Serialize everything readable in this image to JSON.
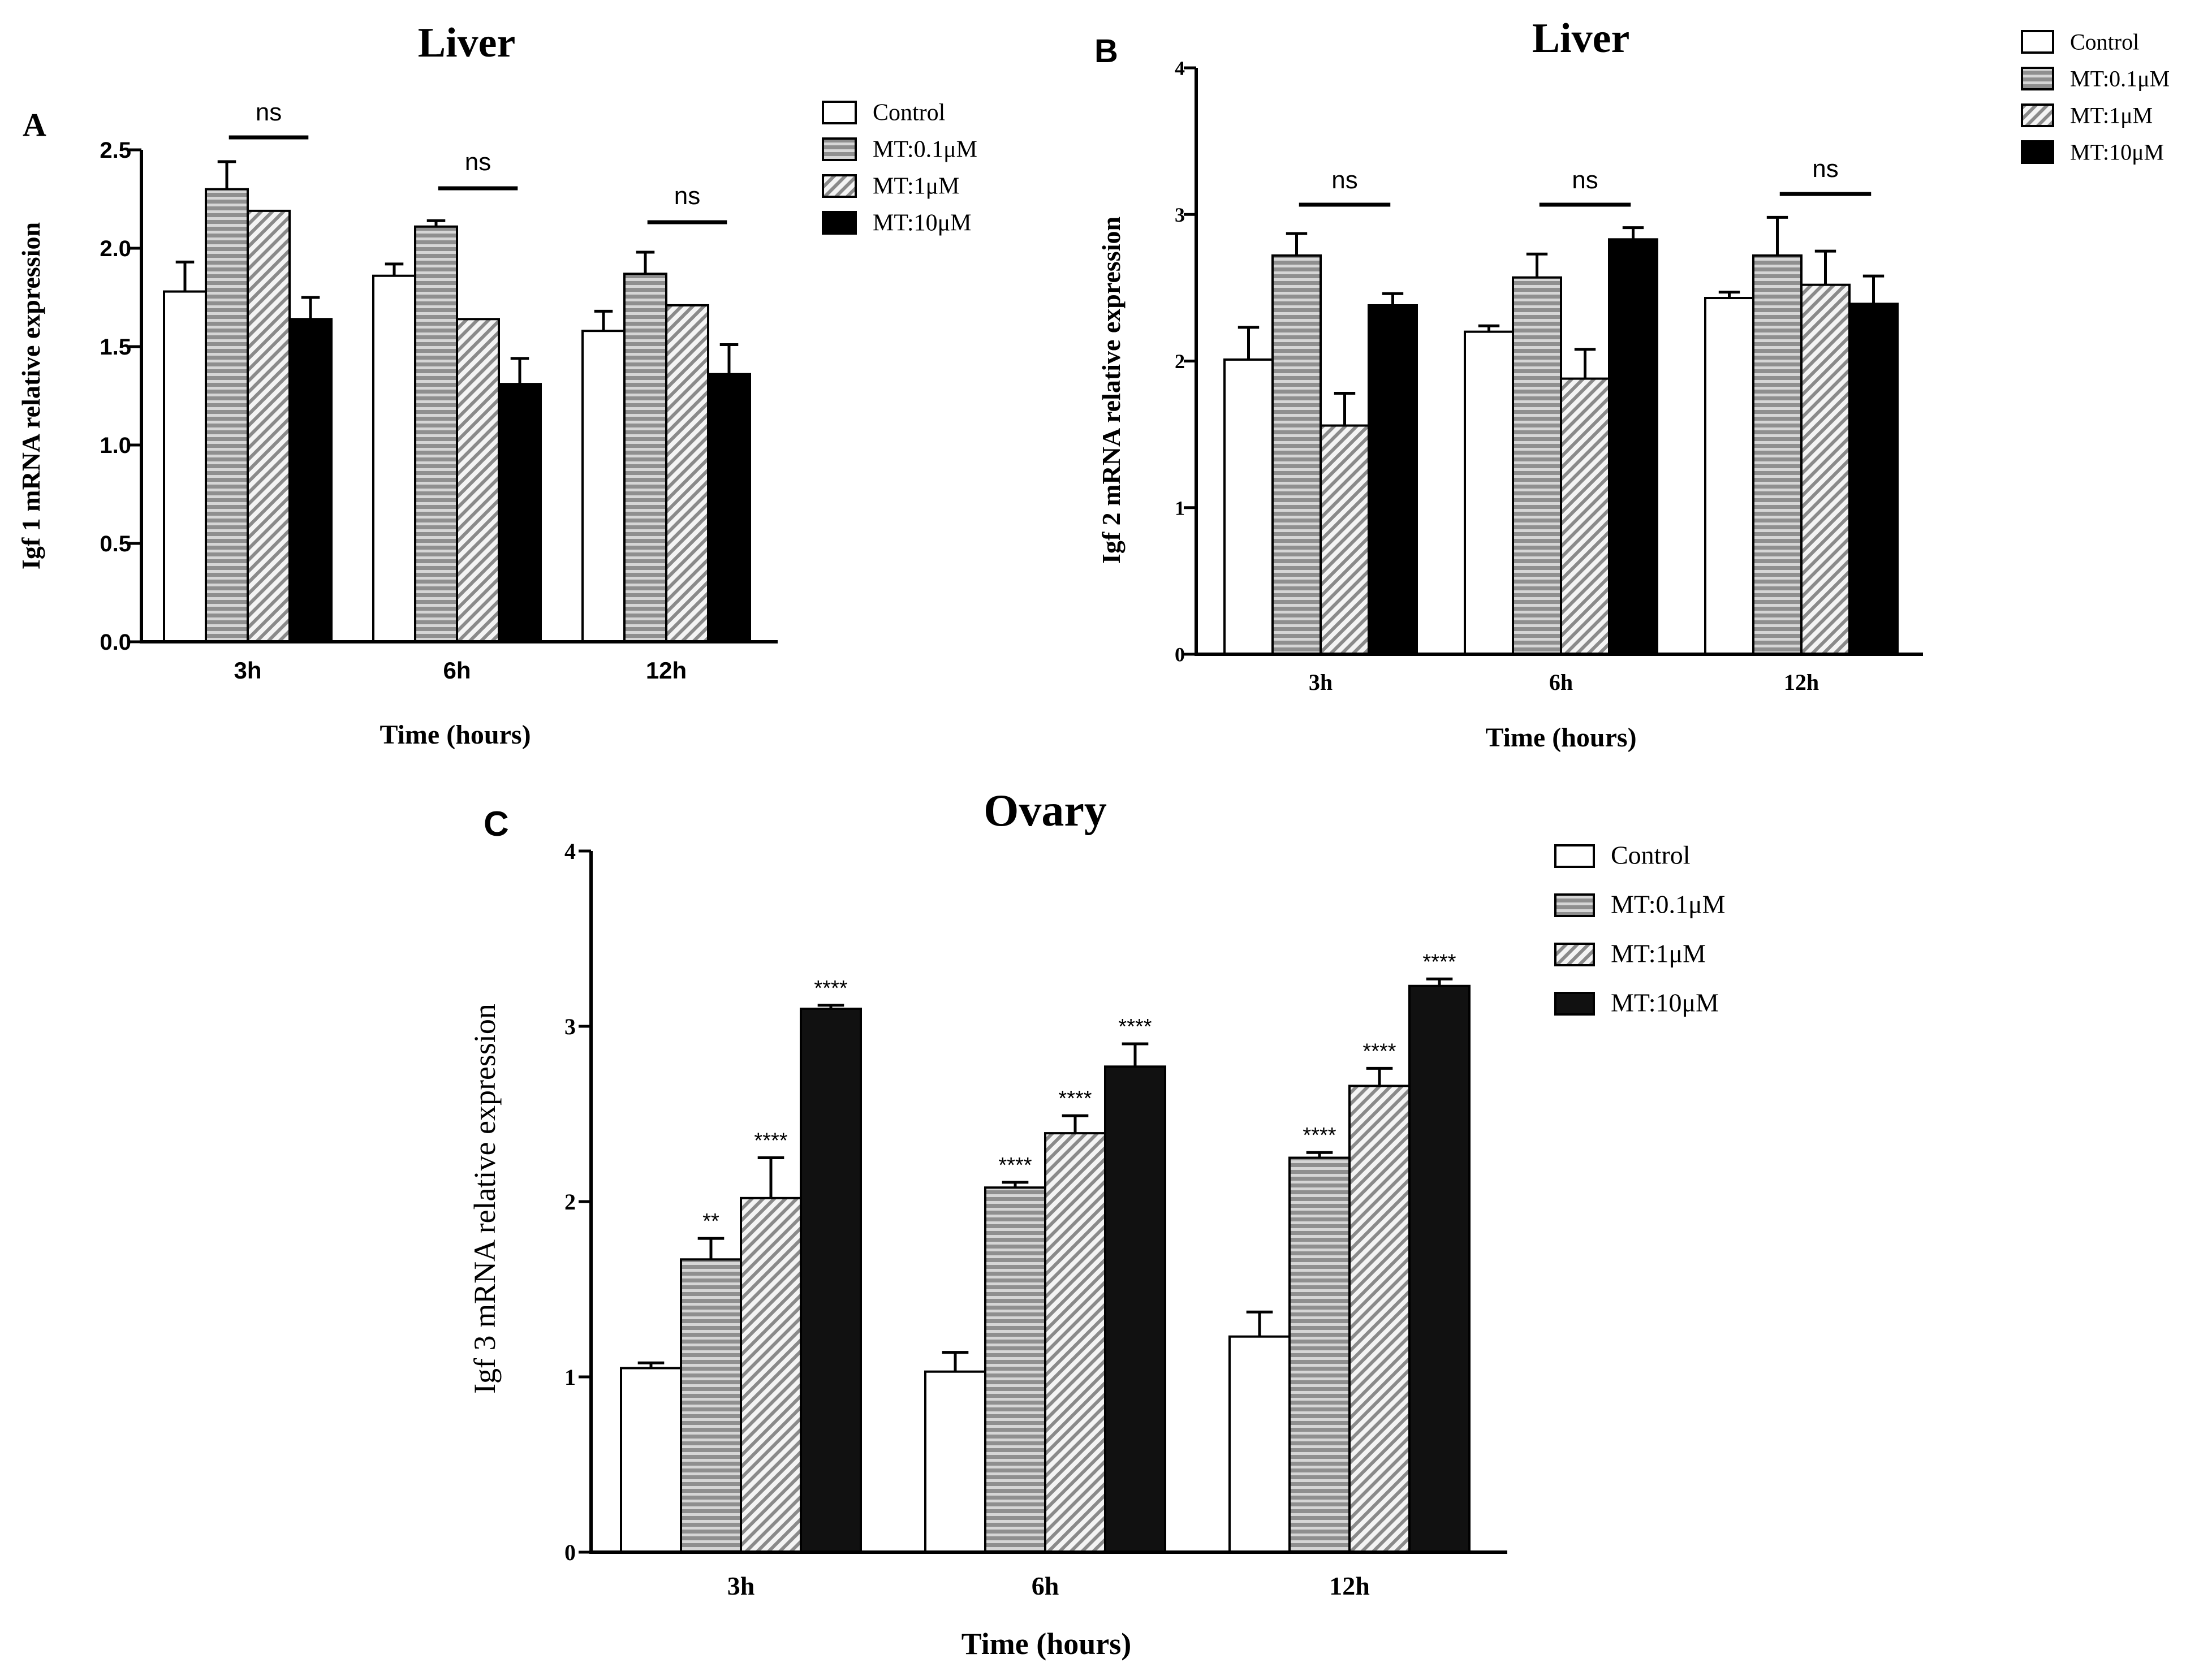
{
  "colors": {
    "control": "#ffffff",
    "mt01": "#9a9a9a",
    "mt1": "#cfcfcf",
    "mt10": "#000000",
    "axis": "#000000"
  },
  "chart_data": [
    {
      "id": "A",
      "panel_label": "A",
      "type": "bar",
      "title": "Liver",
      "xlabel": "Time (hours)",
      "ylabel": "Igf 1 mRNA relative expression",
      "ylim": [
        0,
        2.5
      ],
      "yticks": [
        "0.0",
        "0.5",
        "1.0",
        "1.5",
        "2.0",
        "2.5"
      ],
      "categories": [
        "3h",
        "6h",
        "12h"
      ],
      "legend_position": "top-right",
      "series": [
        {
          "name": "Control",
          "values": [
            1.78,
            1.86,
            1.58
          ],
          "errors": [
            0.15,
            0.06,
            0.1
          ]
        },
        {
          "name": "MT:0.1μM",
          "values": [
            2.3,
            2.11,
            1.87
          ],
          "errors": [
            0.14,
            0.03,
            0.11
          ]
        },
        {
          "name": "MT:1μM",
          "values": [
            2.19,
            1.64,
            1.71
          ],
          "errors": [
            0.0,
            0.0,
            0.0
          ]
        },
        {
          "name": "MT:10μM",
          "values": [
            1.64,
            1.31,
            1.36
          ],
          "errors": [
            0.11,
            0.13,
            0.15
          ]
        }
      ],
      "annotations": [
        {
          "category": "3h",
          "text": "ns"
        },
        {
          "category": "6h",
          "text": "ns"
        },
        {
          "category": "12h",
          "text": "ns"
        }
      ]
    },
    {
      "id": "B",
      "panel_label": "B",
      "type": "bar",
      "title": "Liver",
      "xlabel": "Time (hours)",
      "ylabel": "Igf 2 mRNA relative expression",
      "ylim": [
        0,
        4
      ],
      "yticks": [
        "0",
        "1",
        "2",
        "3",
        "4"
      ],
      "categories": [
        "3h",
        "6h",
        "12h"
      ],
      "legend_position": "top-right",
      "series": [
        {
          "name": "Control",
          "values": [
            2.01,
            2.2,
            2.43
          ],
          "errors": [
            0.22,
            0.04,
            0.04
          ]
        },
        {
          "name": "MT:0.1μM",
          "values": [
            2.72,
            2.57,
            2.72
          ],
          "errors": [
            0.15,
            0.16,
            0.26
          ]
        },
        {
          "name": "MT:1μM",
          "values": [
            1.56,
            1.88,
            2.52
          ],
          "errors": [
            0.22,
            0.2,
            0.23
          ]
        },
        {
          "name": "MT:10μM",
          "values": [
            2.38,
            2.83,
            2.39
          ],
          "errors": [
            0.08,
            0.08,
            0.19
          ]
        }
      ],
      "annotations": [
        {
          "category": "3h",
          "text": "ns"
        },
        {
          "category": "6h",
          "text": "ns"
        },
        {
          "category": "12h",
          "text": "ns"
        }
      ]
    },
    {
      "id": "C",
      "panel_label": "C",
      "type": "bar",
      "title": "Ovary",
      "xlabel": "Time (hours)",
      "ylabel": "Igf 3 mRNA relative expression",
      "ylim": [
        0,
        4
      ],
      "yticks": [
        "0",
        "1",
        "2",
        "3",
        "4"
      ],
      "categories": [
        "3h",
        "6h",
        "12h"
      ],
      "legend_position": "top-right",
      "series": [
        {
          "name": "Control",
          "values": [
            1.05,
            1.03,
            1.23
          ],
          "errors": [
            0.03,
            0.11,
            0.14
          ],
          "stars": [
            "",
            "",
            ""
          ]
        },
        {
          "name": "MT:0.1μM",
          "values": [
            1.67,
            2.08,
            2.25
          ],
          "errors": [
            0.12,
            0.03,
            0.03
          ],
          "stars": [
            "**",
            "****",
            "****"
          ]
        },
        {
          "name": "MT:1μM",
          "values": [
            2.02,
            2.39,
            2.66
          ],
          "errors": [
            0.23,
            0.1,
            0.1
          ],
          "stars": [
            "****",
            "****",
            "****"
          ]
        },
        {
          "name": "MT:10μM",
          "values": [
            3.1,
            2.77,
            3.23
          ],
          "errors": [
            0.02,
            0.13,
            0.04
          ],
          "stars": [
            "****",
            "****",
            "****"
          ]
        }
      ]
    }
  ]
}
